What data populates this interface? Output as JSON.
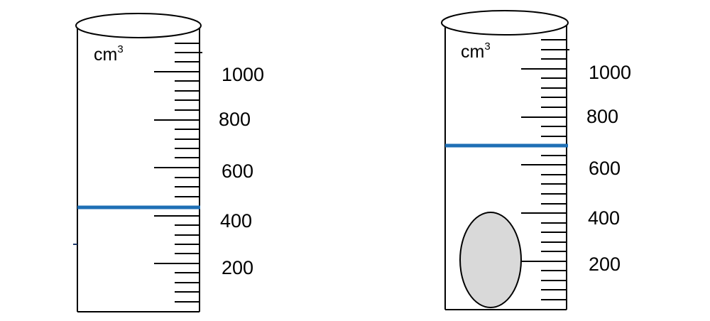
{
  "cylinders": [
    {
      "unit": "cm",
      "unit_superscript": "3",
      "scale_labels": [
        "1000",
        "800",
        "600",
        "400",
        "200"
      ],
      "water_level_color": "#1f6fb5",
      "contains_object": false
    },
    {
      "unit": "cm",
      "unit_superscript": "3",
      "scale_labels": [
        "1000",
        "800",
        "600",
        "400",
        "200"
      ],
      "water_level_color": "#1f6fb5",
      "contains_object": true,
      "object_color": "#d9d9d9"
    }
  ]
}
